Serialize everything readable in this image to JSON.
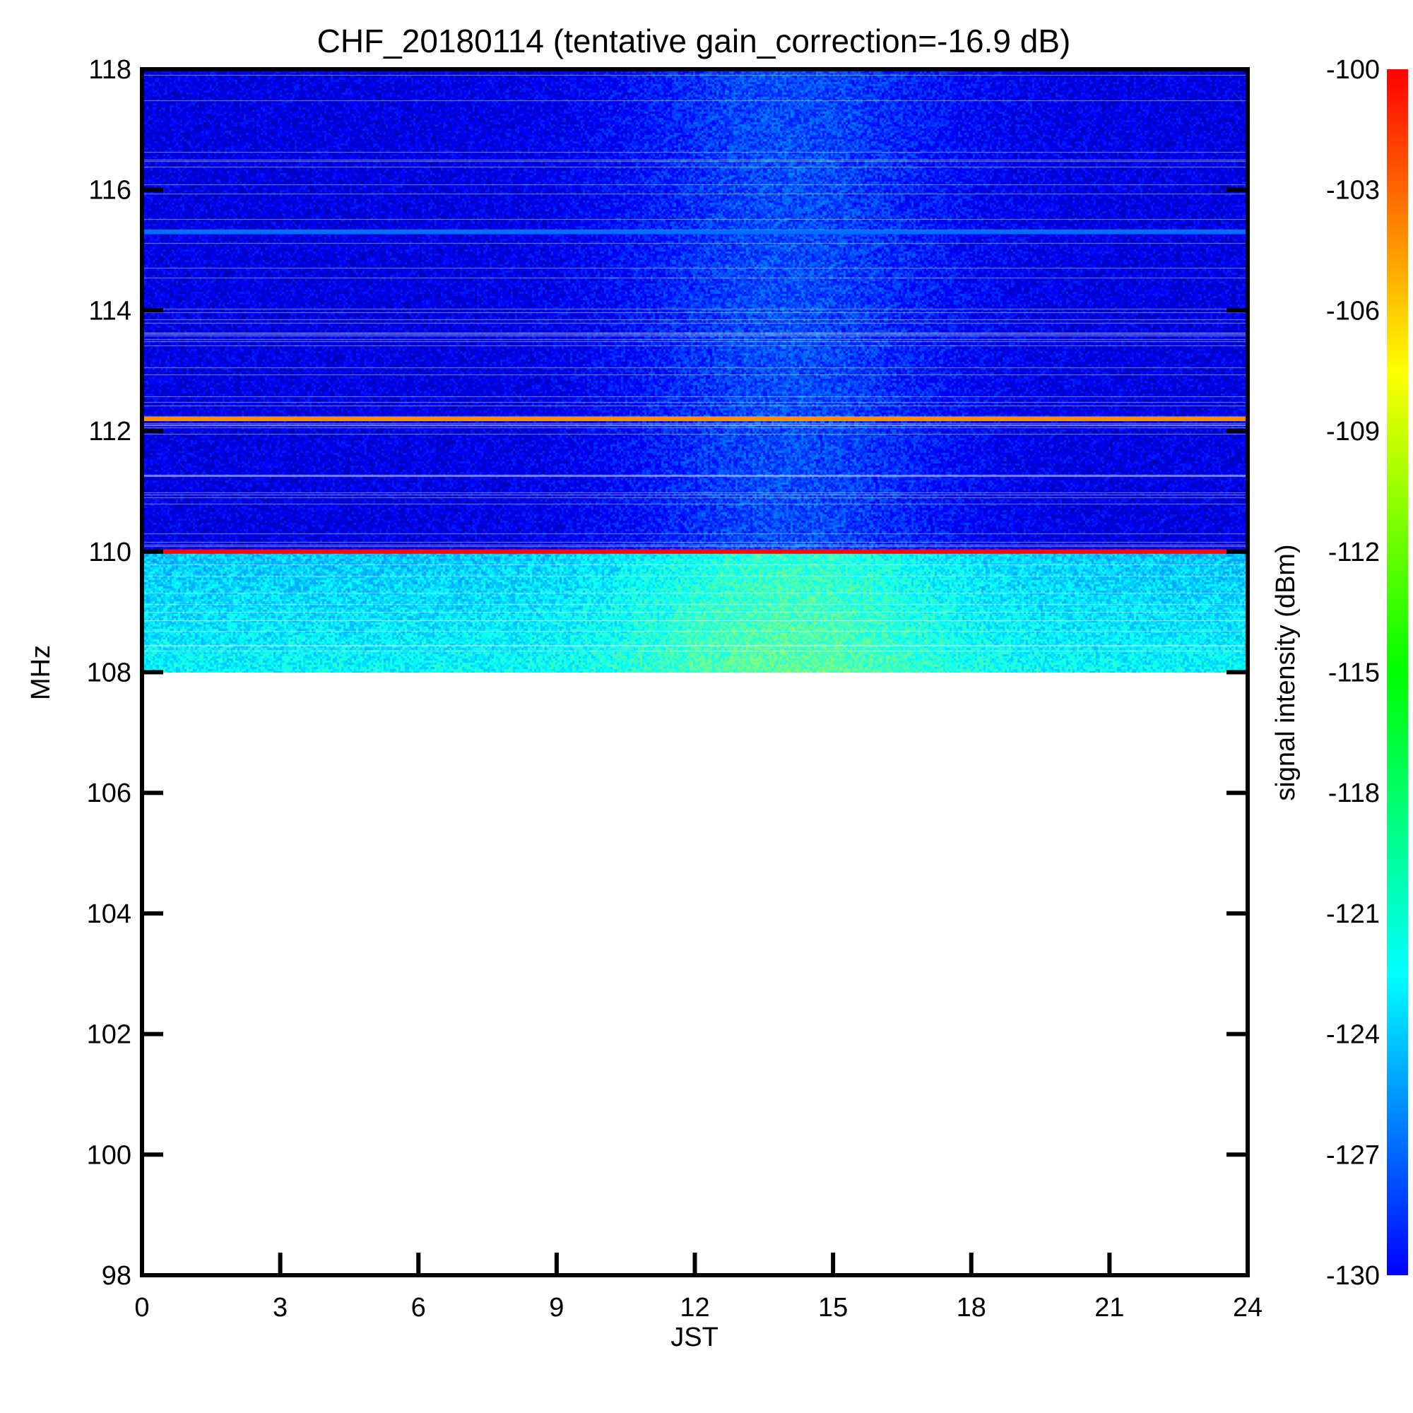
{
  "chart_data": {
    "type": "heatmap",
    "title": "CHF_20180114 (tentative gain_correction=-16.9 dB)",
    "xlabel": "JST",
    "ylabel": "MHz",
    "colorbar_label": "signal intensity (dBm)",
    "xlim": [
      0,
      24
    ],
    "ylim": [
      98,
      118
    ],
    "x_ticks": [
      0,
      3,
      6,
      9,
      12,
      15,
      18,
      21,
      24
    ],
    "y_ticks": [
      98,
      100,
      102,
      104,
      106,
      108,
      110,
      112,
      114,
      116,
      118
    ],
    "colorbar_range": [
      -130,
      -100
    ],
    "colorbar_ticks": [
      -100,
      -103,
      -106,
      -109,
      -112,
      -115,
      -118,
      -121,
      -124,
      -127,
      -130
    ],
    "colormap": "jet",
    "data_freq_range": [
      108,
      118
    ],
    "background_level_dbm": -127,
    "low_band_level_dbm": -120,
    "daytime_level_dbm": -124,
    "strong_lines": [
      {
        "freq_mhz": 112.2,
        "level_dbm": -108
      },
      {
        "freq_mhz": 110.0,
        "level_dbm": -104
      }
    ],
    "moderate_lines": [
      {
        "freq_mhz": 115.3,
        "level_dbm": -123
      }
    ]
  }
}
